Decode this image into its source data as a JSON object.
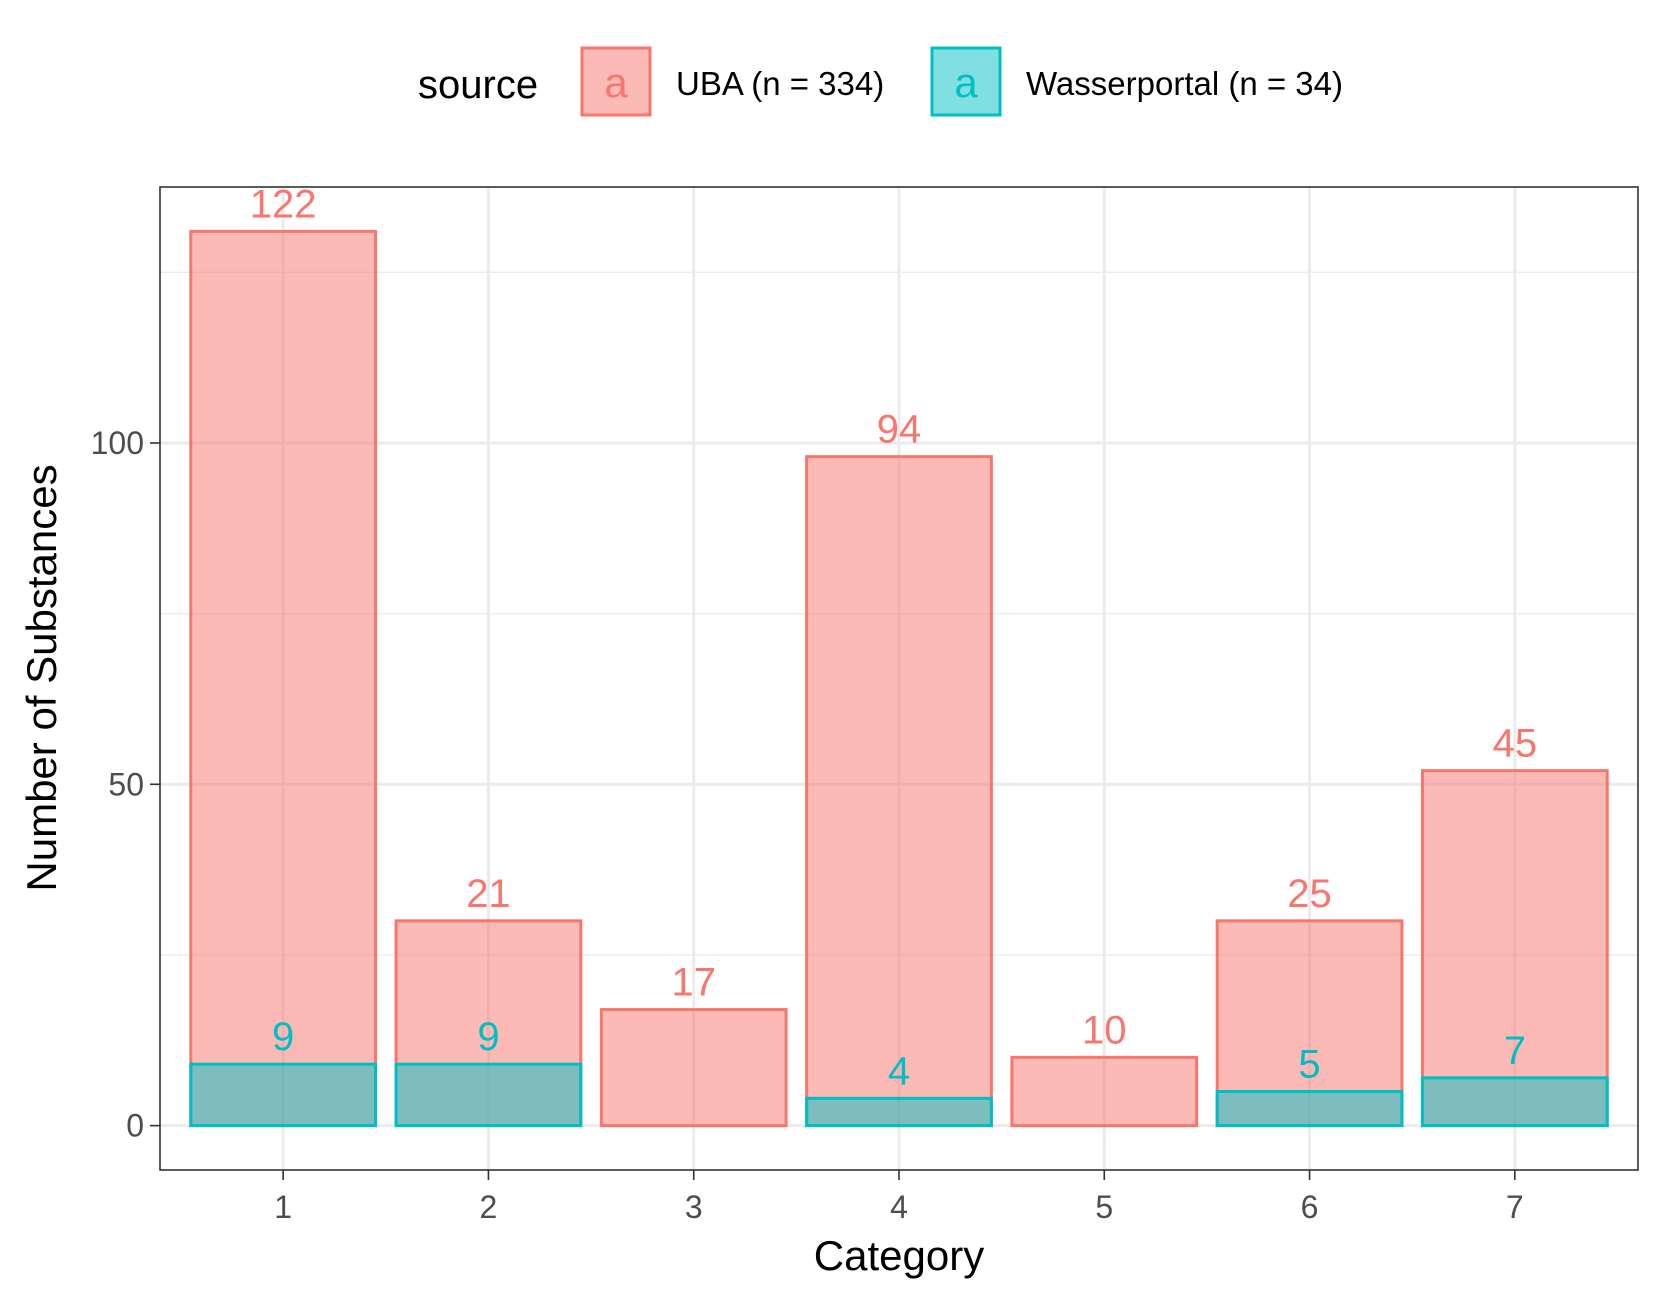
{
  "legend": {
    "title": "source",
    "key_glyph": "a"
  },
  "chart_data": {
    "type": "bar",
    "position": "identity (overlapping)",
    "categories": [
      "1",
      "2",
      "3",
      "4",
      "5",
      "6",
      "7"
    ],
    "series": [
      {
        "name": "UBA (n = 334)",
        "values": [
          131,
          30,
          17,
          98,
          10,
          30,
          52
        ],
        "labels": [
          "122",
          "21",
          "17",
          "94",
          "10",
          "25",
          "45"
        ],
        "fill": "#F8766D",
        "fill_opacity": 0.5,
        "stroke": "#F8766D"
      },
      {
        "name": "Wasserportal (n = 34)",
        "values": [
          9,
          9,
          0,
          4,
          0,
          5,
          7
        ],
        "labels": [
          "9",
          "9",
          "",
          "4",
          "",
          "5",
          "7"
        ],
        "fill": "#00BFC4",
        "fill_opacity": 0.5,
        "stroke": "#00BFC4"
      }
    ],
    "xlabel": "Category",
    "ylabel": "Number of Substances",
    "ylim": [
      -6.5,
      137.5
    ],
    "yticks": [
      0,
      50,
      100
    ],
    "grid": true,
    "legend_position": "top",
    "theme": "bw"
  }
}
